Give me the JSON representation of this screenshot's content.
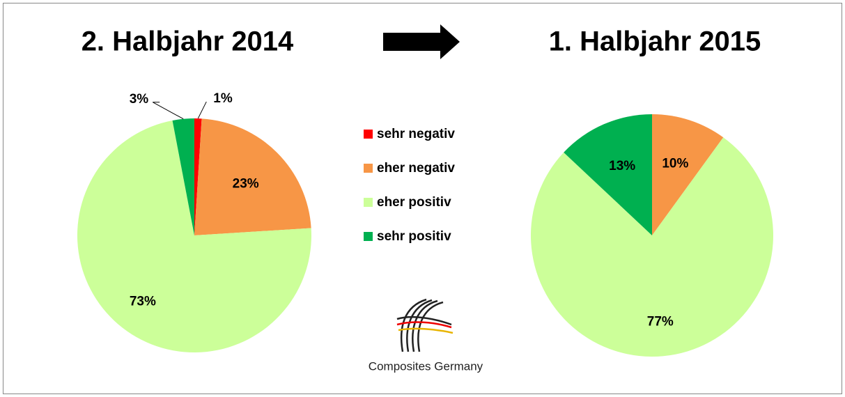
{
  "chart_data": [
    {
      "type": "pie",
      "title": "2. Halbjahr 2014",
      "categories": [
        "sehr negativ",
        "eher negativ",
        "eher positiv",
        "sehr positiv"
      ],
      "values": [
        1,
        23,
        73,
        3
      ],
      "value_labels": [
        "1%",
        "23%",
        "73%",
        "3%"
      ],
      "colors": [
        "#ff0000",
        "#f79646",
        "#ccff99",
        "#00b050"
      ],
      "legend": "center"
    },
    {
      "type": "pie",
      "title": "1. Halbjahr 2015",
      "categories": [
        "eher negativ",
        "eher positiv",
        "sehr positiv"
      ],
      "values": [
        10,
        77,
        13
      ],
      "value_labels": [
        "10%",
        "77%",
        "13%"
      ],
      "colors": [
        "#f79646",
        "#ccff99",
        "#00b050"
      ]
    }
  ],
  "logo_text": "Composites Germany"
}
